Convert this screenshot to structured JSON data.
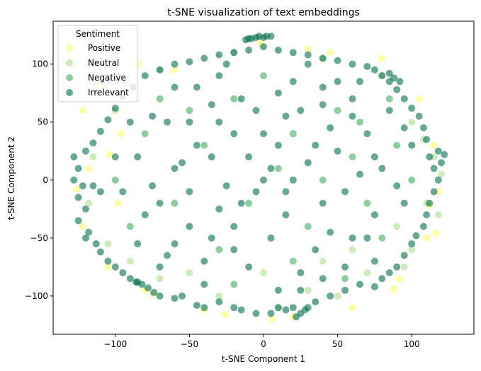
{
  "chart_data": {
    "type": "scatter",
    "title": "t-SNE visualization of text embeddings",
    "xlabel": "t-SNE Component 1",
    "ylabel": "t-SNE Component 2",
    "xlim": [
      -142,
      142
    ],
    "ylim": [
      -133,
      137
    ],
    "x_ticks": [
      -100,
      -50,
      0,
      50,
      100
    ],
    "y_ticks": [
      -100,
      -50,
      0,
      50,
      100
    ],
    "x_tick_labels": [
      "−100",
      "−50",
      "0",
      "50",
      "100"
    ],
    "y_tick_labels": [
      "−100",
      "−50",
      "0",
      "50",
      "100"
    ],
    "grid": false,
    "legend": {
      "title": "Sentiment",
      "placement": "top-left",
      "entries": [
        "Positive",
        "Neutral",
        "Negative",
        "Irrelevant"
      ]
    },
    "series": [
      {
        "name": "Positive",
        "color": "#ffff66",
        "alpha": 0.6,
        "points": [
          [
            -2,
            118
          ],
          [
            30,
            113
          ],
          [
            80,
            105
          ],
          [
            -85,
            100
          ],
          [
            -110,
            80
          ],
          [
            -122,
            60
          ],
          [
            -118,
            10
          ],
          [
            -122,
            -40
          ],
          [
            -105,
            -75
          ],
          [
            -80,
            -95
          ],
          [
            -40,
            -112
          ],
          [
            20,
            -118
          ],
          [
            60,
            -110
          ],
          [
            92,
            -85
          ],
          [
            110,
            -50
          ],
          [
            118,
            -10
          ],
          [
            115,
            30
          ],
          [
            105,
            70
          ],
          [
            -60,
            95
          ],
          [
            45,
            110
          ],
          [
            -98,
            -20
          ],
          [
            -96,
            40
          ],
          [
            -104,
            22
          ],
          [
            -74,
            -98
          ],
          [
            -26,
            -116
          ],
          [
            6,
            -120
          ],
          [
            88,
            -94
          ],
          [
            112,
            -22
          ],
          [
            116,
            -46
          ],
          [
            -126,
            -8
          ]
        ]
      },
      {
        "name": "Neutral",
        "color": "#addd8e",
        "alpha": 0.6,
        "points": [
          [
            0,
            -80
          ],
          [
            30,
            -95
          ],
          [
            70,
            -80
          ],
          [
            100,
            -60
          ],
          [
            110,
            -20
          ],
          [
            115,
            20
          ],
          [
            100,
            50
          ],
          [
            80,
            90
          ],
          [
            40,
            105
          ],
          [
            -20,
            110
          ],
          [
            -70,
            95
          ],
          [
            -100,
            60
          ],
          [
            -115,
            20
          ],
          [
            -118,
            -20
          ],
          [
            -105,
            -55
          ],
          [
            -70,
            -85
          ],
          [
            -30,
            -100
          ],
          [
            10,
            -110
          ],
          [
            50,
            -100
          ],
          [
            90,
            -40
          ],
          [
            60,
            -60
          ],
          [
            40,
            -70
          ],
          [
            -50,
            -80
          ],
          [
            -90,
            -70
          ],
          [
            95,
            -75
          ],
          [
            118,
            -30
          ],
          [
            120,
            5
          ],
          [
            108,
            35
          ]
        ]
      },
      {
        "name": "Negative",
        "color": "#41ab5d",
        "alpha": 0.6,
        "points": [
          [
            -40,
            30
          ],
          [
            20,
            40
          ],
          [
            60,
            20
          ],
          [
            -10,
            -20
          ],
          [
            30,
            -40
          ],
          [
            -60,
            -20
          ],
          [
            -80,
            40
          ],
          [
            70,
            -20
          ],
          [
            -20,
            70
          ],
          [
            50,
            60
          ],
          [
            90,
            30
          ],
          [
            -100,
            0
          ],
          [
            0,
            90
          ],
          [
            -30,
            -60
          ],
          [
            20,
            -70
          ],
          [
            80,
            -50
          ],
          [
            -70,
            70
          ],
          [
            100,
            0
          ],
          [
            -90,
            -40
          ],
          [
            40,
            0
          ],
          [
            -50,
            60
          ],
          [
            10,
            10
          ],
          [
            65,
            50
          ],
          [
            -20,
            -90
          ],
          [
            55,
            -85
          ],
          [
            85,
            70
          ]
        ]
      },
      {
        "name": "Irrelevant",
        "color": "#006d4f",
        "alpha": 0.6,
        "points": [
          [
            -128,
            20
          ],
          [
            -125,
            10
          ],
          [
            -128,
            0
          ],
          [
            -122,
            -5
          ],
          [
            -125,
            -15
          ],
          [
            -120,
            -25
          ],
          [
            -125,
            -35
          ],
          [
            -118,
            -45
          ],
          [
            -120,
            -50
          ],
          [
            -113,
            -55
          ],
          [
            -110,
            -62
          ],
          [
            -105,
            -70
          ],
          [
            -100,
            -75
          ],
          [
            -85,
            -88
          ],
          [
            -82,
            -90
          ],
          [
            -78,
            -93
          ],
          [
            -74,
            -97
          ],
          [
            -70,
            -100
          ],
          [
            -60,
            -102
          ],
          [
            -55,
            -100
          ],
          [
            -45,
            -108
          ],
          [
            -40,
            -110
          ],
          [
            -30,
            -105
          ],
          [
            -20,
            -110
          ],
          [
            -15,
            -112
          ],
          [
            -5,
            -115
          ],
          [
            5,
            -115
          ],
          [
            10,
            -110
          ],
          [
            15,
            -112
          ],
          [
            20,
            -110
          ],
          [
            22,
            -118
          ],
          [
            25,
            -115
          ],
          [
            28,
            -112
          ],
          [
            30,
            -110
          ],
          [
            35,
            -105
          ],
          [
            45,
            -100
          ],
          [
            55,
            -95
          ],
          [
            65,
            -90
          ],
          [
            75,
            -92
          ],
          [
            80,
            -85
          ],
          [
            85,
            -80
          ],
          [
            90,
            -75
          ],
          [
            95,
            -65
          ],
          [
            100,
            -55
          ],
          [
            103,
            -48
          ],
          [
            108,
            -40
          ],
          [
            110,
            -30
          ],
          [
            112,
            -20
          ],
          [
            115,
            -10
          ],
          [
            118,
            0
          ],
          [
            115,
            10
          ],
          [
            112,
            20
          ],
          [
            118,
            25
          ],
          [
            122,
            22
          ],
          [
            120,
            15
          ],
          [
            110,
            35
          ],
          [
            108,
            45
          ],
          [
            105,
            55
          ],
          [
            100,
            62
          ],
          [
            95,
            70
          ],
          [
            90,
            78
          ],
          [
            85,
            85
          ],
          [
            80,
            90
          ],
          [
            75,
            95
          ],
          [
            70,
            98
          ],
          [
            60,
            100
          ],
          [
            50,
            103
          ],
          [
            40,
            105
          ],
          [
            30,
            108
          ],
          [
            20,
            110
          ],
          [
            10,
            112
          ],
          [
            0,
            115
          ],
          [
            -10,
            112
          ],
          [
            -20,
            110
          ],
          [
            -30,
            108
          ],
          [
            -40,
            105
          ],
          [
            -50,
            102
          ],
          [
            -60,
            100
          ],
          [
            -70,
            95
          ],
          [
            -80,
            90
          ],
          [
            -88,
            80
          ],
          [
            -95,
            72
          ],
          [
            -100,
            62
          ],
          [
            -105,
            52
          ],
          [
            -110,
            42
          ],
          [
            -115,
            32
          ],
          [
            -120,
            25
          ],
          [
            -10,
            122
          ],
          [
            -5,
            123
          ],
          [
            0,
            123
          ],
          [
            5,
            124
          ],
          [
            -12,
            121
          ],
          [
            -3,
            124
          ],
          [
            2,
            124
          ],
          [
            -8,
            122
          ],
          [
            85,
            92
          ],
          [
            88,
            88
          ],
          [
            92,
            85
          ],
          [
            -90,
            -85
          ],
          [
            -86,
            -88
          ],
          [
            -95,
            -80
          ],
          [
            -50,
            50
          ],
          [
            -30,
            50
          ],
          [
            -20,
            40
          ],
          [
            -35,
            20
          ],
          [
            -60,
            10
          ],
          [
            -75,
            -5
          ],
          [
            -80,
            -30
          ],
          [
            -60,
            -55
          ],
          [
            -40,
            -70
          ],
          [
            -20,
            -40
          ],
          [
            -5,
            -10
          ],
          [
            10,
            30
          ],
          [
            25,
            60
          ],
          [
            40,
            80
          ],
          [
            60,
            70
          ],
          [
            70,
            40
          ],
          [
            80,
            10
          ],
          [
            75,
            -30
          ],
          [
            60,
            -50
          ],
          [
            40,
            -20
          ],
          [
            20,
            0
          ],
          [
            0,
            40
          ],
          [
            -15,
            70
          ],
          [
            -45,
            80
          ],
          [
            -65,
            50
          ],
          [
            -85,
            20
          ],
          [
            -95,
            -10
          ],
          [
            -70,
            -75
          ],
          [
            -50,
            -40
          ],
          [
            -30,
            -25
          ],
          [
            -10,
            20
          ],
          [
            15,
            55
          ],
          [
            35,
            30
          ],
          [
            55,
            -10
          ],
          [
            75,
            -70
          ],
          [
            95,
            -20
          ],
          [
            100,
            30
          ],
          [
            85,
            60
          ],
          [
            50,
            85
          ],
          [
            10,
            75
          ],
          [
            -30,
            90
          ],
          [
            -55,
            15
          ],
          [
            -25,
            -5
          ],
          [
            5,
            -50
          ],
          [
            25,
            -80
          ],
          [
            45,
            -45
          ],
          [
            65,
            5
          ],
          [
            -40,
            -90
          ],
          [
            -10,
            -75
          ],
          [
            15,
            -30
          ],
          [
            35,
            -60
          ],
          [
            -75,
            55
          ],
          [
            -110,
            -10
          ],
          [
            -100,
            20
          ],
          [
            30,
            100
          ],
          [
            -5,
            60
          ],
          [
            45,
            45
          ],
          [
            70,
            -50
          ],
          [
            -65,
            -65
          ],
          [
            -35,
            -50
          ],
          [
            10,
            -95
          ],
          [
            55,
            -75
          ],
          [
            -85,
            -55
          ],
          [
            90,
            -5
          ],
          [
            20,
            85
          ],
          [
            -45,
            30
          ],
          [
            0,
            0
          ],
          [
            30,
            15
          ],
          [
            50,
            25
          ],
          [
            -20,
            -60
          ],
          [
            -90,
            50
          ],
          [
            65,
            85
          ],
          [
            -115,
            -5
          ],
          [
            25,
            -95
          ],
          [
            40,
            -85
          ],
          [
            -25,
            100
          ],
          [
            -60,
            80
          ],
          [
            75,
            20
          ],
          [
            95,
            45
          ],
          [
            -15,
            -20
          ],
          [
            5,
            10
          ],
          [
            -70,
            -20
          ],
          [
            40,
            65
          ],
          [
            -50,
            -10
          ],
          [
            15,
            -10
          ],
          [
            60,
            55
          ],
          [
            -35,
            65
          ]
        ]
      }
    ]
  }
}
